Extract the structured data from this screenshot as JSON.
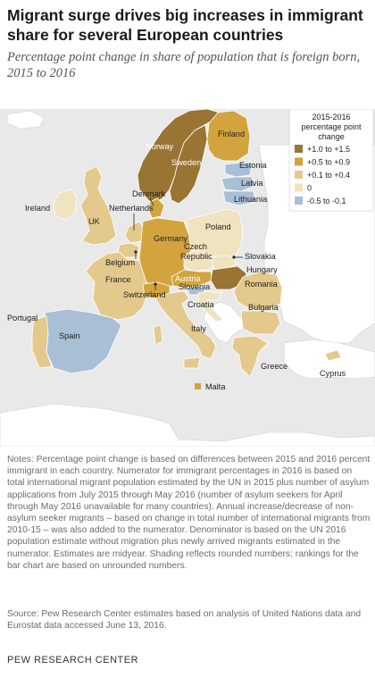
{
  "title": "Migrant surge drives big increases in immigrant share for several European countries",
  "subtitle": "Percentage point change in share of population that is foreign born, 2015 to 2016",
  "legend": {
    "title_line1": "2015-2016",
    "title_line2": "percentage point",
    "title_line3": "change",
    "items": [
      {
        "label": "+1.0 to +1.5",
        "color": "#9a7433"
      },
      {
        "label": "+0.5 to +0.9",
        "color": "#d3a43e"
      },
      {
        "label": "+0.1 to +0.4",
        "color": "#e4c98d"
      },
      {
        "label": "0",
        "color": "#efe3c0"
      },
      {
        "label": "-0.5 to -0.1",
        "color": "#a9bfd6"
      }
    ]
  },
  "countries": {
    "norway": "Norway",
    "sweden": "Sweden",
    "finland": "Finland",
    "estonia": "Estonia",
    "latvia": "Latvia",
    "lithuania": "Lithuania",
    "ireland": "Ireland",
    "uk": "UK",
    "denmark": "Denmark",
    "netherlands": "Netherlands",
    "germany": "Germany",
    "poland": "Poland",
    "belgium": "Belgium",
    "czech1": "Czech",
    "czech2": "Republic",
    "slovakia": "Slovakia",
    "hungary": "Hungary",
    "austria": "Austria",
    "france": "France",
    "switzerland": "Switzerland",
    "slovenia": "Slovenia",
    "romania": "Romania",
    "croatia": "Croatia",
    "bulgaria": "Bulgaria",
    "portugal": "Portugal",
    "spain": "Spain",
    "italy": "Italy",
    "greece": "Greece",
    "cyprus": "Cyprus",
    "malta": "Malta"
  },
  "colors": {
    "high": "#9a7433",
    "mid": "#d3a43e",
    "low": "#e4c98d",
    "zero": "#efe3c0",
    "neg": "#a9bfd6",
    "non_eu": "#ffffff",
    "sea": "#e9e9e9"
  },
  "notes": "Notes: Percentage point change is based on differences between 2015 and 2016 percent immigrant in each country. Numerator for immigrant percentages in 2016 is based on total international migrant population estimated by the UN in 2015 plus number of asylum applications from July 2015 through May 2016 (number of asylum seekers for April through May 2016 unavailable for many countries). Annual increase/decrease of non-asylum seeker migrants – based on change in total number of international migrants from 2010-15 – was also added to the numerator. Denominator is based on the UN 2016 population estimate without migration plus newly arrived migrants estimated in the numerator. Estimates are midyear. Shading reflects rounded numbers; rankings for the bar chart are based on unrounded numbers.",
  "source": "Source: Pew Research Center estimates based on analysis of United Nations data and Eurostat data accessed June 13, 2016.",
  "org": "PEW RESEARCH CENTER"
}
